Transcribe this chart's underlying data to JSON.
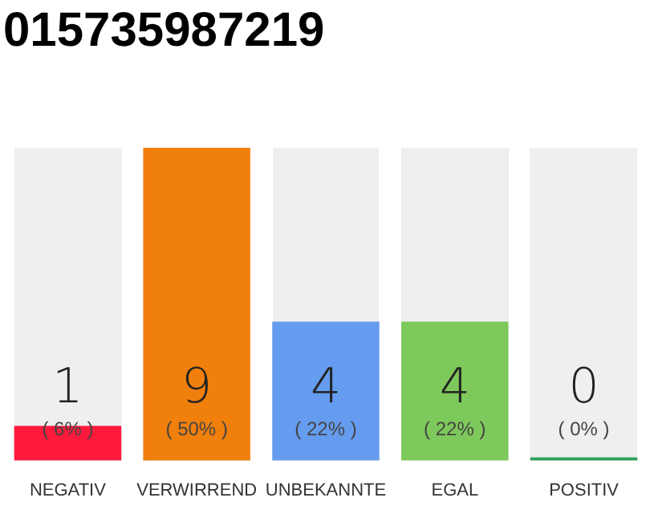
{
  "chart_data": {
    "type": "bar",
    "title": "015735987219",
    "categories": [
      "NEGATIV",
      "VERWIRREND",
      "UNBEKANNTE",
      "EGAL",
      "POSITIV"
    ],
    "values": [
      1,
      9,
      4,
      4,
      0
    ],
    "colors": [
      "#ff1a3c",
      "#f07f0c",
      "#659cef",
      "#7ec95b",
      "#2ca05a"
    ],
    "value_labels": [
      "1\n( 6% )",
      "9\n( 50% )",
      "4\n( 22% )",
      "4\n( 22% )",
      "0\n( 0% )"
    ]
  }
}
